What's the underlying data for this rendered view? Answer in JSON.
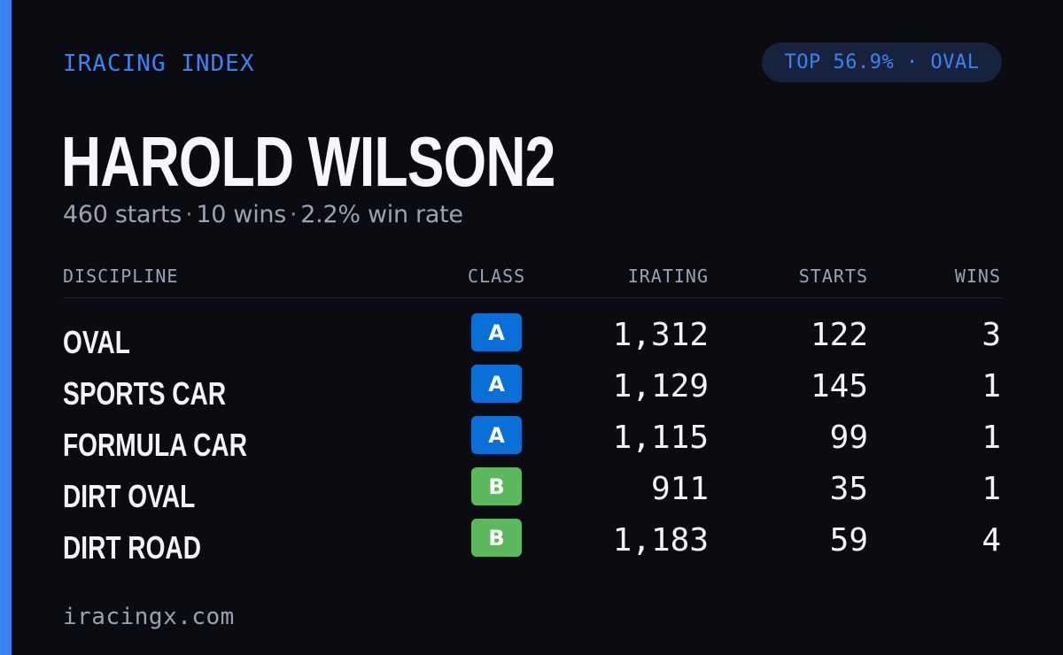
{
  "header": {
    "brand": "IRACING INDEX",
    "rank_badge": "TOP 56.9% · OVAL"
  },
  "driver": {
    "name": "HAROLD WILSON2",
    "starts_text": "460 starts",
    "wins_text": "10 wins",
    "win_rate_text": "2.2% win rate",
    "separator": "·"
  },
  "table": {
    "columns": {
      "discipline": "DISCIPLINE",
      "class": "CLASS",
      "irating": "IRATING",
      "starts": "STARTS",
      "wins": "WINS"
    },
    "rows": [
      {
        "discipline": "OVAL",
        "class": "A",
        "irating": "1,312",
        "starts": "122",
        "wins": "3"
      },
      {
        "discipline": "SPORTS CAR",
        "class": "A",
        "irating": "1,129",
        "starts": "145",
        "wins": "1"
      },
      {
        "discipline": "FORMULA CAR",
        "class": "A",
        "irating": "1,115",
        "starts": "99",
        "wins": "1"
      },
      {
        "discipline": "DIRT OVAL",
        "class": "B",
        "irating": "911",
        "starts": "35",
        "wins": "1"
      },
      {
        "discipline": "DIRT ROAD",
        "class": "B",
        "irating": "1,183",
        "starts": "59",
        "wins": "4"
      }
    ]
  },
  "colors": {
    "accent": "#3b82f6",
    "class_A": "#0a6fd6",
    "class_B": "#5cb85c",
    "background": "#0a0c12"
  },
  "footer": {
    "site": "iracingx.com"
  }
}
